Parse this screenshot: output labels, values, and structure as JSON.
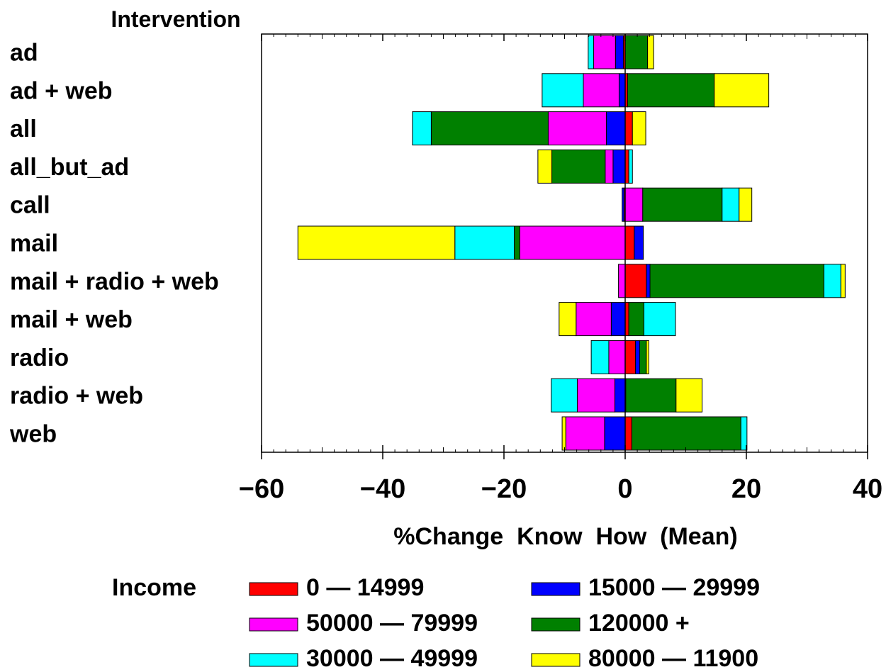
{
  "chart_data": {
    "type": "bar",
    "orientation": "horizontal",
    "stacked": "diverging",
    "row_axis_title": "Intervention",
    "categories": [
      "ad",
      "ad + web",
      "all",
      "all_but_ad",
      "call",
      "mail",
      "mail + radio + web",
      "mail + web",
      "radio",
      "radio + web",
      "web"
    ],
    "xlabel": "%Change  Know  How  (Mean)",
    "xlim": [
      -60,
      40
    ],
    "xticks": [
      -60,
      -40,
      -20,
      0,
      20,
      40
    ],
    "xtick_labels": [
      "−60",
      "−40",
      "−20",
      "0",
      "20",
      "40"
    ],
    "legend": {
      "title": "Income",
      "placement": "bottom"
    },
    "series": [
      {
        "name": "0 — 14999",
        "color": "#ff0000",
        "values": [
          -0.3,
          0.4,
          1.2,
          0.6,
          -0.2,
          1.5,
          3.5,
          0.6,
          1.7,
          0.1,
          1.1
        ]
      },
      {
        "name": "15000 — 29999",
        "color": "#0000ff",
        "values": [
          -1.3,
          -1.0,
          -3.1,
          -2.0,
          -0.3,
          1.5,
          0.6,
          -2.3,
          0.7,
          -1.7,
          -3.4
        ]
      },
      {
        "name": "50000 — 79999",
        "color": "#ff00ff",
        "values": [
          -3.6,
          -5.9,
          -9.6,
          -1.3,
          2.9,
          -17.4,
          -1.1,
          -5.8,
          -2.7,
          -6.2,
          -6.4
        ]
      },
      {
        "name": "120000 +",
        "color": "#008000",
        "values": [
          3.7,
          14.3,
          -19.3,
          -8.8,
          13.1,
          -0.9,
          28.7,
          2.5,
          1.1,
          8.3,
          18.0
        ]
      },
      {
        "name": "30000 — 49999",
        "color": "#00ffff",
        "values": [
          -0.9,
          -6.8,
          -3.1,
          0.6,
          2.8,
          -9.8,
          2.8,
          5.2,
          -2.9,
          -4.3,
          1.0
        ]
      },
      {
        "name": "80000 — 11900",
        "color": "#ffff00",
        "values": [
          1.0,
          9.0,
          2.2,
          -2.3,
          2.1,
          -25.9,
          0.7,
          -2.8,
          0.4,
          4.3,
          -0.6
        ]
      }
    ]
  }
}
